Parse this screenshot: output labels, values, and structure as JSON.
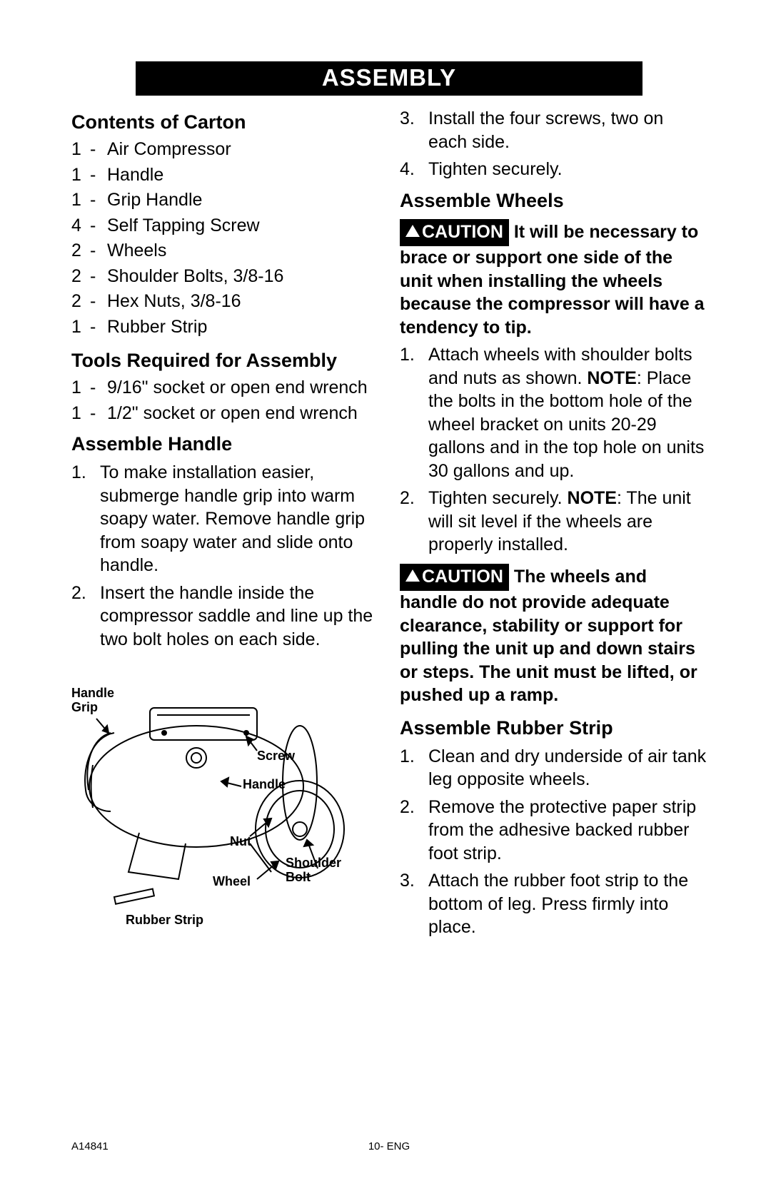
{
  "title": "ASSEMBLY",
  "left": {
    "contents_head": "Contents of Carton",
    "contents": [
      {
        "q": "1",
        "d": "-",
        "t": "Air Compressor"
      },
      {
        "q": "1",
        "d": "-",
        "t": "Handle"
      },
      {
        "q": "1",
        "d": "-",
        "t": "Grip Handle"
      },
      {
        "q": "4",
        "d": "-",
        "t": "Self Tapping Screw"
      },
      {
        "q": "2",
        "d": "-",
        "t": "Wheels"
      },
      {
        "q": "2",
        "d": "-",
        "t": "Shoulder Bolts, 3/8-16"
      },
      {
        "q": "2",
        "d": "-",
        "t": "Hex Nuts, 3/8-16"
      },
      {
        "q": "1",
        "d": "-",
        "t": "Rubber Strip"
      }
    ],
    "tools_head": "Tools Required for Assembly",
    "tools": [
      {
        "q": "1",
        "d": "-",
        "t": "9/16\" socket or open end wrench"
      },
      {
        "q": "1",
        "d": "-",
        "t": "1/2\"  socket or open end wrench"
      }
    ],
    "handle_head": "Assemble Handle",
    "handle_steps": [
      "To make installation easier, submerge handle grip into warm soapy water.  Remove handle grip from soapy water and slide onto handle.",
      "Insert the handle inside the compressor saddle and line up the two bolt holes on each side."
    ],
    "diagram": {
      "labels": {
        "handle_grip": "Handle\nGrip",
        "screw": "Screw",
        "handle": "Handle",
        "nut": "Nut",
        "shoulder_bolt": "Shoulder\nBolt",
        "wheel": "Wheel",
        "rubber_strip": "Rubber Strip"
      }
    }
  },
  "right": {
    "cont_steps": [
      {
        "n": "3.",
        "t": "Install the four screws, two on each side."
      },
      {
        "n": "4.",
        "t": "Tighten securely."
      }
    ],
    "wheels_head": "Assemble Wheels",
    "caution_label": "CAUTION",
    "caution1": "It will be necessary to brace or support one side of the unit when installing the wheels because the compressor will have a tendency to tip.",
    "wheels_steps": [
      {
        "n": "1.",
        "pre": "Attach wheels with shoulder bolts and nuts as shown. ",
        "bold": "NOTE",
        "post": ": Place the bolts in the bottom hole of the wheel bracket on units 20-29 gallons and in the top hole on units 30 gallons and up."
      },
      {
        "n": "2.",
        "pre": "Tighten securely. ",
        "bold": "NOTE",
        "post": ": The unit will sit level if the wheels are properly installed."
      }
    ],
    "caution2": "The wheels and handle do not provide adequate clearance, stability or support for pulling the unit up and down stairs or steps. The unit must be lifted, or pushed up a ramp.",
    "rubber_head": "Assemble Rubber Strip",
    "rubber_steps": [
      "Clean and dry underside of air tank leg opposite wheels.",
      "Remove the protective paper strip from the adhesive backed rubber foot strip.",
      "Attach the rubber foot strip to the bottom of leg.  Press firmly into place."
    ]
  },
  "footer": {
    "doc": "A14841",
    "page": "10- ENG"
  }
}
